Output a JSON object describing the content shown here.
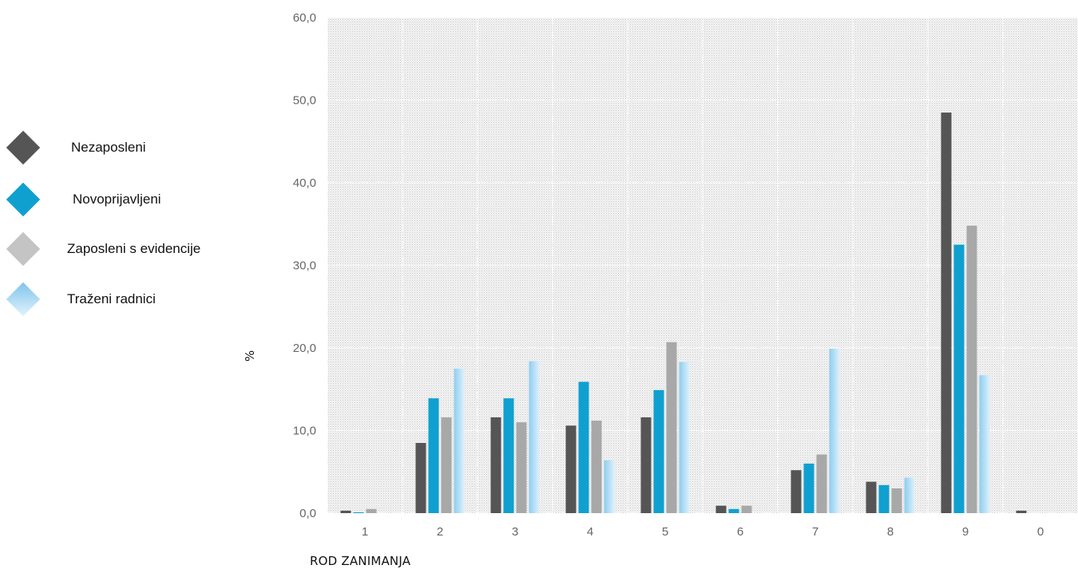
{
  "chart_data": {
    "type": "bar",
    "categories": [
      "1",
      "2",
      "3",
      "4",
      "5",
      "6",
      "7",
      "8",
      "9",
      "0"
    ],
    "series": [
      {
        "name": "Nezaposleni",
        "color": "#555555",
        "values": [
          0.3,
          8.5,
          11.6,
          10.6,
          11.6,
          0.9,
          5.2,
          3.8,
          48.5,
          0.3
        ]
      },
      {
        "name": "Novoprijavljeni",
        "color": "#0FA0D0",
        "values": [
          0.1,
          13.9,
          13.9,
          15.9,
          14.9,
          0.5,
          6.0,
          3.4,
          32.5,
          0.0
        ]
      },
      {
        "name": "Zaposleni s evidencije",
        "color": "#A8A8A8",
        "values": [
          0.5,
          11.6,
          11.0,
          11.2,
          20.7,
          0.9,
          7.1,
          3.0,
          34.8,
          0.0
        ]
      },
      {
        "name": "Traženi radnici",
        "color": "#A7D8F2",
        "values": [
          0.0,
          17.5,
          18.4,
          6.4,
          18.3,
          0.0,
          19.9,
          4.3,
          16.7,
          0.0
        ]
      }
    ],
    "ylim": [
      0,
      60
    ],
    "yticks": [
      "0,0",
      "10,0",
      "20,0",
      "30,0",
      "40,0",
      "50,0",
      "60,0"
    ],
    "ylabel": "%",
    "xlabel": "ROD ZANIMANJA",
    "grid": true,
    "legend_position": "left"
  }
}
